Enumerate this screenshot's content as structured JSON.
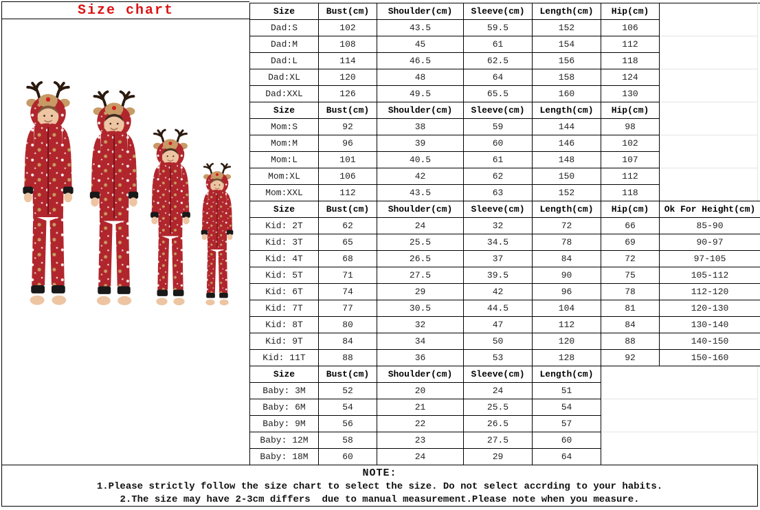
{
  "title": "Size chart",
  "colors": {
    "title_red": "#dd1414",
    "pajama_red": "#b0262c",
    "pattern_tan": "#c89b62",
    "hood_tan": "#c79a66",
    "cuff_black": "#191919",
    "skin": "#edc5a3",
    "table_border": "#000000",
    "faint_grid": "#e4e4e4"
  },
  "photo": {
    "figures": [
      "dad",
      "mom",
      "girl",
      "baby"
    ],
    "description": "Family wearing matching red reindeer hooded pajamas"
  },
  "tables": [
    {
      "group": "Dad",
      "headers": [
        "Size",
        "Bust(cm)",
        "Shoulder(cm)",
        "Sleeve(cm)",
        "Length(cm)",
        "Hip(cm)"
      ],
      "rows": [
        [
          "Dad:S",
          "102",
          "43.5",
          "59.5",
          "152",
          "106"
        ],
        [
          "Dad:M",
          "108",
          "45",
          "61",
          "154",
          "112"
        ],
        [
          "Dad:L",
          "114",
          "46.5",
          "62.5",
          "156",
          "118"
        ],
        [
          "Dad:XL",
          "120",
          "48",
          "64",
          "158",
          "124"
        ],
        [
          "Dad:XXL",
          "126",
          "49.5",
          "65.5",
          "160",
          "130"
        ]
      ]
    },
    {
      "group": "Mom",
      "headers": [
        "Size",
        "Bust(cm)",
        "Shoulder(cm)",
        "Sleeve(cm)",
        "Length(cm)",
        "Hip(cm)"
      ],
      "rows": [
        [
          "Mom:S",
          "92",
          "38",
          "59",
          "144",
          "98"
        ],
        [
          "Mom:M",
          "96",
          "39",
          "60",
          "146",
          "102"
        ],
        [
          "Mom:L",
          "101",
          "40.5",
          "61",
          "148",
          "107"
        ],
        [
          "Mom:XL",
          "106",
          "42",
          "62",
          "150",
          "112"
        ],
        [
          "Mom:XXL",
          "112",
          "43.5",
          "63",
          "152",
          "118"
        ]
      ]
    },
    {
      "group": "Kid",
      "headers": [
        "Size",
        "Bust(cm)",
        "Shoulder(cm)",
        "Sleeve(cm)",
        "Length(cm)",
        "Hip(cm)",
        "Ok For Height(cm)"
      ],
      "rows": [
        [
          "Kid: 2T",
          "62",
          "24",
          "32",
          "72",
          "66",
          "85-90"
        ],
        [
          "Kid: 3T",
          "65",
          "25.5",
          "34.5",
          "78",
          "69",
          "90-97"
        ],
        [
          "Kid: 4T",
          "68",
          "26.5",
          "37",
          "84",
          "72",
          "97-105"
        ],
        [
          "Kid: 5T",
          "71",
          "27.5",
          "39.5",
          "90",
          "75",
          "105-112"
        ],
        [
          "Kid: 6T",
          "74",
          "29",
          "42",
          "96",
          "78",
          "112-120"
        ],
        [
          "Kid: 7T",
          "77",
          "30.5",
          "44.5",
          "104",
          "81",
          "120-130"
        ],
        [
          "Kid: 8T",
          "80",
          "32",
          "47",
          "112",
          "84",
          "130-140"
        ],
        [
          "Kid: 9T",
          "84",
          "34",
          "50",
          "120",
          "88",
          "140-150"
        ],
        [
          "Kid: 11T",
          "88",
          "36",
          "53",
          "128",
          "92",
          "150-160"
        ]
      ]
    },
    {
      "group": "Baby",
      "headers": [
        "Size",
        "Bust(cm)",
        "Shoulder(cm)",
        "Sleeve(cm)",
        "Length(cm)"
      ],
      "rows": [
        [
          "Baby: 3M",
          "52",
          "20",
          "24",
          "51"
        ],
        [
          "Baby: 6M",
          "54",
          "21",
          "25.5",
          "54"
        ],
        [
          "Baby: 9M",
          "56",
          "22",
          "26.5",
          "57"
        ],
        [
          "Baby: 12M",
          "58",
          "23",
          "27.5",
          "60"
        ],
        [
          "Baby: 18M",
          "60",
          "24",
          "29",
          "64"
        ]
      ]
    }
  ],
  "note": {
    "heading": "NOTE:",
    "lines": [
      "1.Please strictly follow the size chart to select the size. Do not select accrding to your habits.",
      "2.The size may have 2-3cm differs  due to manual measurement.Please note when you measure."
    ]
  }
}
